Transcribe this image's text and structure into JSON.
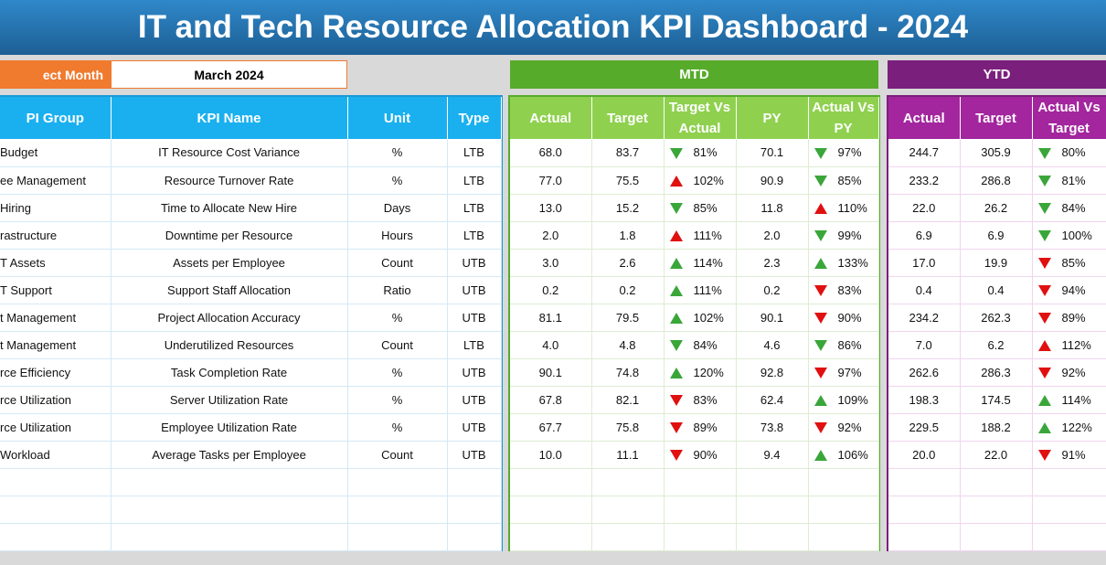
{
  "title": "IT and Tech Resource Allocation KPI Dashboard - 2024",
  "selector": {
    "label": "ect Month",
    "value": "March 2024"
  },
  "bands": {
    "mtd": "MTD",
    "ytd": "YTD"
  },
  "left_headers": [
    "PI Group",
    "KPI Name",
    "Unit",
    "Type"
  ],
  "mtd_headers": [
    "Actual",
    "Target",
    "Target Vs Actual",
    "PY",
    "Actual Vs PY"
  ],
  "ytd_headers": [
    "Actual",
    "Target",
    "Actual Vs Target"
  ],
  "rows": [
    {
      "group": "Budget",
      "kpi": "IT Resource Cost Variance",
      "unit": "%",
      "type": "LTB",
      "m_actual": "68.0",
      "m_target": "83.7",
      "m_tva": "81%",
      "m_tva_dir": "down-green",
      "m_py": "70.1",
      "m_avpy": "97%",
      "m_avpy_dir": "down-green",
      "y_actual": "244.7",
      "y_target": "305.9",
      "y_avt": "80%",
      "y_avt_dir": "down-green"
    },
    {
      "group": "ee Management",
      "kpi": "Resource Turnover Rate",
      "unit": "%",
      "type": "LTB",
      "m_actual": "77.0",
      "m_target": "75.5",
      "m_tva": "102%",
      "m_tva_dir": "up-red",
      "m_py": "90.9",
      "m_avpy": "85%",
      "m_avpy_dir": "down-green",
      "y_actual": "233.2",
      "y_target": "286.8",
      "y_avt": "81%",
      "y_avt_dir": "down-green"
    },
    {
      "group": "Hiring",
      "kpi": "Time to Allocate New Hire",
      "unit": "Days",
      "type": "LTB",
      "m_actual": "13.0",
      "m_target": "15.2",
      "m_tva": "85%",
      "m_tva_dir": "down-green",
      "m_py": "11.8",
      "m_avpy": "110%",
      "m_avpy_dir": "up-red",
      "y_actual": "22.0",
      "y_target": "26.2",
      "y_avt": "84%",
      "y_avt_dir": "down-green"
    },
    {
      "group": "rastructure",
      "kpi": "Downtime per Resource",
      "unit": "Hours",
      "type": "LTB",
      "m_actual": "2.0",
      "m_target": "1.8",
      "m_tva": "111%",
      "m_tva_dir": "up-red",
      "m_py": "2.0",
      "m_avpy": "99%",
      "m_avpy_dir": "down-green",
      "y_actual": "6.9",
      "y_target": "6.9",
      "y_avt": "100%",
      "y_avt_dir": "down-green"
    },
    {
      "group": "T Assets",
      "kpi": "Assets per Employee",
      "unit": "Count",
      "type": "UTB",
      "m_actual": "3.0",
      "m_target": "2.6",
      "m_tva": "114%",
      "m_tva_dir": "up-green",
      "m_py": "2.3",
      "m_avpy": "133%",
      "m_avpy_dir": "up-green",
      "y_actual": "17.0",
      "y_target": "19.9",
      "y_avt": "85%",
      "y_avt_dir": "down-red"
    },
    {
      "group": "T Support",
      "kpi": "Support Staff Allocation",
      "unit": "Ratio",
      "type": "UTB",
      "m_actual": "0.2",
      "m_target": "0.2",
      "m_tva": "111%",
      "m_tva_dir": "up-green",
      "m_py": "0.2",
      "m_avpy": "83%",
      "m_avpy_dir": "down-red",
      "y_actual": "0.4",
      "y_target": "0.4",
      "y_avt": "94%",
      "y_avt_dir": "down-red"
    },
    {
      "group": "t Management",
      "kpi": "Project Allocation Accuracy",
      "unit": "%",
      "type": "UTB",
      "m_actual": "81.1",
      "m_target": "79.5",
      "m_tva": "102%",
      "m_tva_dir": "up-green",
      "m_py": "90.1",
      "m_avpy": "90%",
      "m_avpy_dir": "down-red",
      "y_actual": "234.2",
      "y_target": "262.3",
      "y_avt": "89%",
      "y_avt_dir": "down-red"
    },
    {
      "group": "t Management",
      "kpi": "Underutilized Resources",
      "unit": "Count",
      "type": "LTB",
      "m_actual": "4.0",
      "m_target": "4.8",
      "m_tva": "84%",
      "m_tva_dir": "down-green",
      "m_py": "4.6",
      "m_avpy": "86%",
      "m_avpy_dir": "down-green",
      "y_actual": "7.0",
      "y_target": "6.2",
      "y_avt": "112%",
      "y_avt_dir": "up-red"
    },
    {
      "group": "rce Efficiency",
      "kpi": "Task Completion Rate",
      "unit": "%",
      "type": "UTB",
      "m_actual": "90.1",
      "m_target": "74.8",
      "m_tva": "120%",
      "m_tva_dir": "up-green",
      "m_py": "92.8",
      "m_avpy": "97%",
      "m_avpy_dir": "down-red",
      "y_actual": "262.6",
      "y_target": "286.3",
      "y_avt": "92%",
      "y_avt_dir": "down-red"
    },
    {
      "group": "rce Utilization",
      "kpi": "Server Utilization Rate",
      "unit": "%",
      "type": "UTB",
      "m_actual": "67.8",
      "m_target": "82.1",
      "m_tva": "83%",
      "m_tva_dir": "down-red",
      "m_py": "62.4",
      "m_avpy": "109%",
      "m_avpy_dir": "up-green",
      "y_actual": "198.3",
      "y_target": "174.5",
      "y_avt": "114%",
      "y_avt_dir": "up-green"
    },
    {
      "group": "rce Utilization",
      "kpi": "Employee Utilization Rate",
      "unit": "%",
      "type": "UTB",
      "m_actual": "67.7",
      "m_target": "75.8",
      "m_tva": "89%",
      "m_tva_dir": "down-red",
      "m_py": "73.8",
      "m_avpy": "92%",
      "m_avpy_dir": "down-red",
      "y_actual": "229.5",
      "y_target": "188.2",
      "y_avt": "122%",
      "y_avt_dir": "up-green"
    },
    {
      "group": "Workload",
      "kpi": "Average Tasks per Employee",
      "unit": "Count",
      "type": "UTB",
      "m_actual": "10.0",
      "m_target": "11.1",
      "m_tva": "90%",
      "m_tva_dir": "down-red",
      "m_py": "9.4",
      "m_avpy": "106%",
      "m_avpy_dir": "up-green",
      "y_actual": "20.0",
      "y_target": "22.0",
      "y_avt": "91%",
      "y_avt_dir": "down-red"
    }
  ],
  "empty_rows": 3,
  "colors": {
    "up_green": "#3aa63a",
    "red": "#e01010",
    "mtd": "#57ab2b",
    "ytd": "#7b1f7d",
    "left_header": "#1ab0ef"
  }
}
